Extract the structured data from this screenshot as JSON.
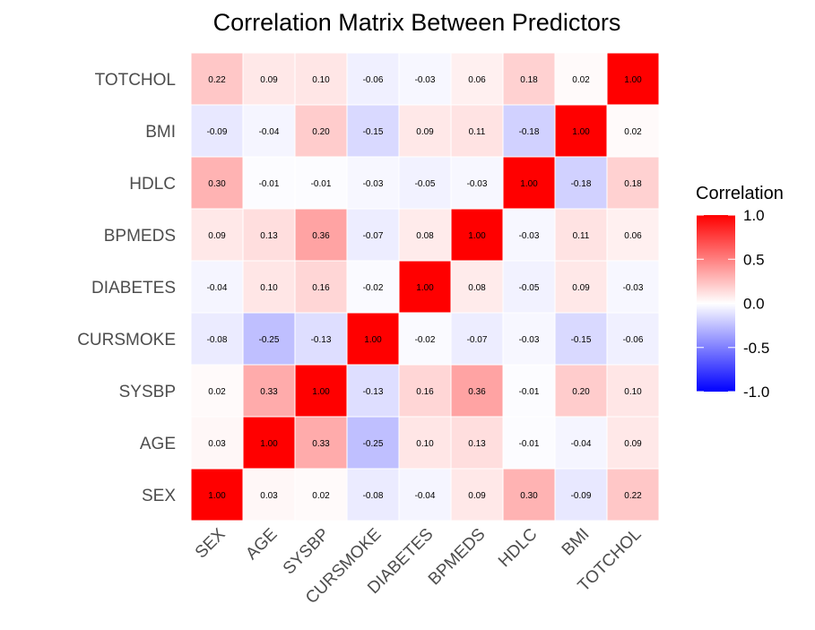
{
  "chart_data": {
    "type": "heatmap",
    "title": "Correlation Matrix Between Predictors",
    "variables": [
      "SEX",
      "AGE",
      "SYSBP",
      "CURSMOKE",
      "DIABETES",
      "BPMEDS",
      "HDLC",
      "BMI",
      "TOTCHOL"
    ],
    "matrix": [
      [
        1.0,
        0.03,
        0.02,
        -0.08,
        -0.04,
        0.09,
        0.3,
        -0.09,
        0.22
      ],
      [
        0.03,
        1.0,
        0.33,
        -0.25,
        0.1,
        0.13,
        -0.01,
        -0.04,
        0.09
      ],
      [
        0.02,
        0.33,
        1.0,
        -0.13,
        0.16,
        0.36,
        -0.01,
        0.2,
        0.1
      ],
      [
        -0.08,
        -0.25,
        -0.13,
        1.0,
        -0.02,
        -0.07,
        -0.03,
        -0.15,
        -0.06
      ],
      [
        -0.04,
        0.1,
        0.16,
        -0.02,
        1.0,
        0.08,
        -0.05,
        0.09,
        -0.03
      ],
      [
        0.09,
        0.13,
        0.36,
        -0.07,
        0.08,
        1.0,
        -0.03,
        0.11,
        0.06
      ],
      [
        0.3,
        -0.01,
        -0.01,
        -0.03,
        -0.05,
        -0.03,
        1.0,
        -0.18,
        0.18
      ],
      [
        -0.09,
        -0.04,
        0.2,
        -0.15,
        0.09,
        0.11,
        -0.18,
        1.0,
        0.02
      ],
      [
        0.22,
        0.09,
        0.1,
        -0.06,
        -0.03,
        0.06,
        0.18,
        0.02,
        1.0
      ]
    ],
    "legend": {
      "title": "Correlation",
      "ticks": [
        "1.0",
        "0.5",
        "0.0",
        "-0.5",
        "-1.0"
      ],
      "range": [
        -1,
        1
      ],
      "placement": "right"
    },
    "colors": {
      "low": "#0000ff",
      "mid": "#ffffff",
      "high": "#ff0000"
    },
    "grid": false
  }
}
